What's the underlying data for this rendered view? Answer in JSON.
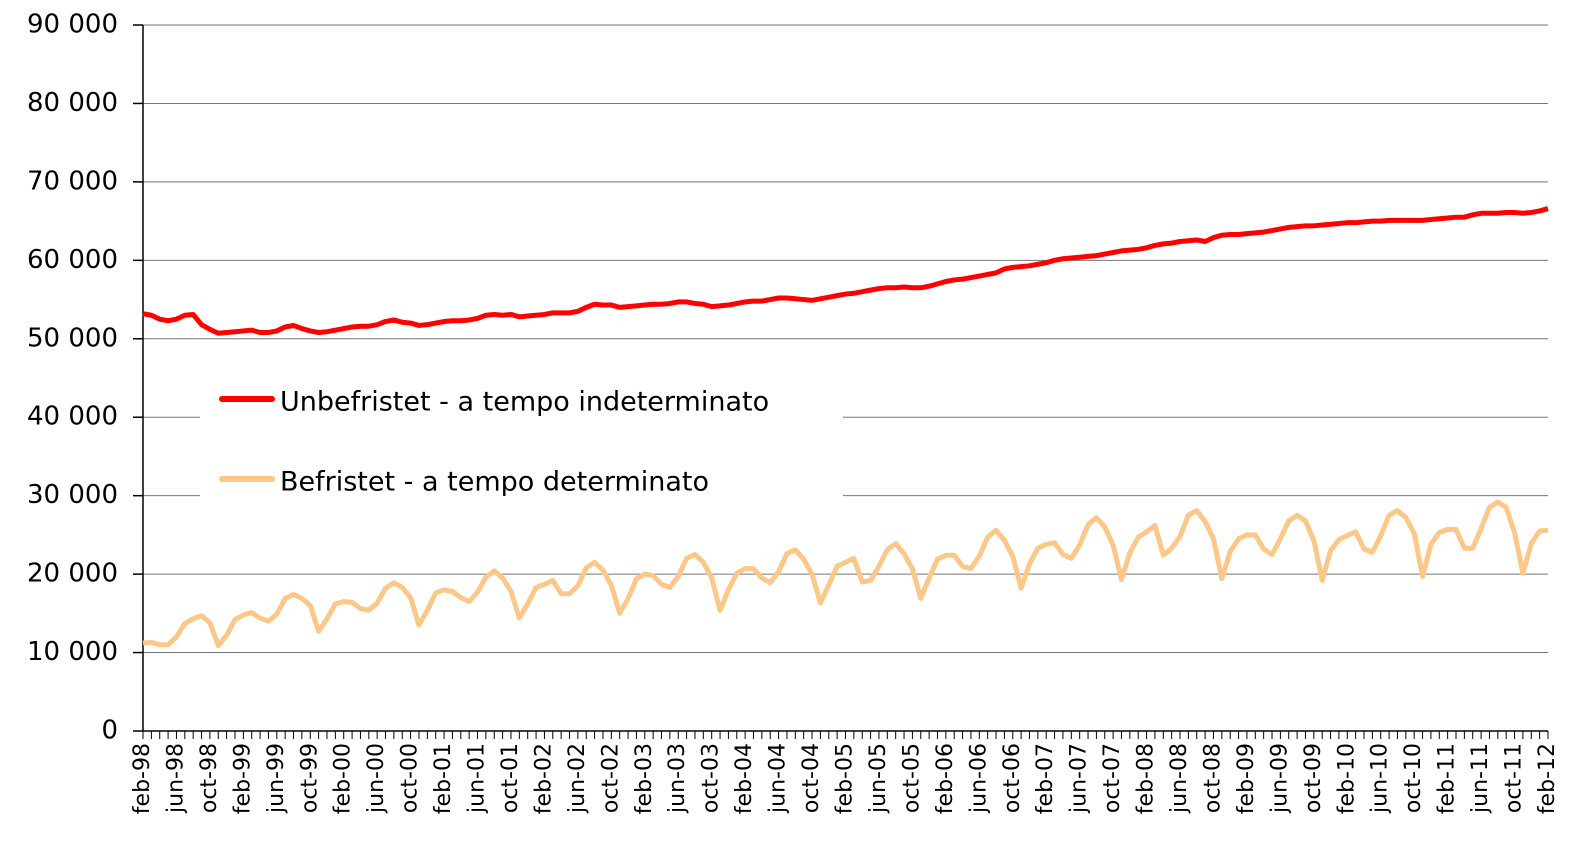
{
  "chart_data": {
    "type": "line",
    "categories": [
      "feb-98",
      null,
      null,
      null,
      "jun-98",
      null,
      null,
      null,
      "oct-98",
      null,
      null,
      null,
      "feb-99",
      null,
      null,
      null,
      "jun-99",
      null,
      null,
      null,
      "oct-99",
      null,
      null,
      null,
      "feb-00",
      null,
      null,
      null,
      "jun-00",
      null,
      null,
      null,
      "oct-00",
      null,
      null,
      null,
      "feb-01",
      null,
      null,
      null,
      "jun-01",
      null,
      null,
      null,
      "oct-01",
      null,
      null,
      null,
      "feb-02",
      null,
      null,
      null,
      "jun-02",
      null,
      null,
      null,
      "oct-02",
      null,
      null,
      null,
      "feb-03",
      null,
      null,
      null,
      "jun-03",
      null,
      null,
      null,
      "oct-03",
      null,
      null,
      null,
      "feb-04",
      null,
      null,
      null,
      "jun-04",
      null,
      null,
      null,
      "oct-04",
      null,
      null,
      null,
      "feb-05",
      null,
      null,
      null,
      "jun-05",
      null,
      null,
      null,
      "oct-05",
      null,
      null,
      null,
      "feb-06",
      null,
      null,
      null,
      "jun-06",
      null,
      null,
      null,
      "oct-06",
      null,
      null,
      null,
      "feb-07",
      null,
      null,
      null,
      "jun-07",
      null,
      null,
      null,
      "oct-07",
      null,
      null,
      null,
      "feb-08",
      null,
      null,
      null,
      "jun-08",
      null,
      null,
      null,
      "oct-08",
      null,
      null,
      null,
      "feb-09",
      null,
      null,
      null,
      "jun-09",
      null,
      null,
      null,
      "oct-09",
      null,
      null,
      null,
      "feb-10",
      null,
      null,
      null,
      "jun-10",
      null,
      null,
      null,
      "oct-10",
      null,
      null,
      null,
      "feb-11",
      null,
      null,
      null,
      "jun-11",
      null,
      null,
      null,
      "oct-11",
      null,
      null,
      null,
      "feb-12"
    ],
    "series": [
      {
        "name": "Unbefristet - a tempo indeterminato",
        "color": "#ff0000",
        "values": [
          53200,
          53000,
          52500,
          52300,
          52500,
          53000,
          53100,
          51800,
          51200,
          50700,
          50800,
          50900,
          51000,
          51100,
          50800,
          50800,
          51000,
          51500,
          51700,
          51300,
          51000,
          50800,
          50900,
          51100,
          51300,
          51500,
          51600,
          51600,
          51800,
          52200,
          52400,
          52100,
          52000,
          51700,
          51800,
          52000,
          52200,
          52300,
          52300,
          52400,
          52600,
          53000,
          53100,
          53000,
          53100,
          52800,
          52900,
          53000,
          53100,
          53300,
          53300,
          53300,
          53500,
          54000,
          54400,
          54300,
          54300,
          54000,
          54100,
          54200,
          54300,
          54400,
          54400,
          54500,
          54700,
          54700,
          54500,
          54400,
          54100,
          54200,
          54300,
          54500,
          54700,
          54800,
          54800,
          55000,
          55200,
          55200,
          55100,
          55000,
          54900,
          55100,
          55300,
          55500,
          55700,
          55800,
          56000,
          56200,
          56400,
          56500,
          56500,
          56600,
          56500,
          56500,
          56700,
          57000,
          57300,
          57500,
          57600,
          57800,
          58000,
          58200,
          58400,
          58900,
          59100,
          59200,
          59300,
          59500,
          59700,
          60000,
          60200,
          60300,
          60400,
          60500,
          60600,
          60800,
          61000,
          61200,
          61300,
          61400,
          61600,
          61900,
          62100,
          62200,
          62400,
          62500,
          62600,
          62400,
          62900,
          63200,
          63300,
          63300,
          63400,
          63500,
          63600,
          63800,
          64000,
          64200,
          64300,
          64400,
          64400,
          64500,
          64600,
          64700,
          64800,
          64800,
          64900,
          65000,
          65000,
          65100,
          65100,
          65100,
          65100,
          65100,
          65200,
          65300,
          65400,
          65500,
          65500,
          65800,
          66000,
          66000,
          66000,
          66100,
          66100,
          66000,
          66100,
          66300,
          66600
        ]
      },
      {
        "name": "Befristet - a tempo determinato",
        "color": "#fbc88a",
        "values": [
          11200,
          11300,
          11000,
          11000,
          12000,
          13700,
          14300,
          14700,
          13800,
          10900,
          12200,
          14200,
          14800,
          15100,
          14400,
          14000,
          14900,
          16900,
          17400,
          16900,
          16000,
          12700,
          14300,
          16200,
          16500,
          16400,
          15600,
          15400,
          16300,
          18200,
          18900,
          18300,
          17000,
          13500,
          15400,
          17600,
          18000,
          17800,
          17000,
          16500,
          17700,
          19600,
          20400,
          19500,
          17800,
          14400,
          16200,
          18300,
          18700,
          19200,
          17500,
          17500,
          18500,
          20800,
          21500,
          20500,
          18600,
          15000,
          16900,
          19400,
          20000,
          19800,
          18700,
          18300,
          19700,
          22000,
          22500,
          21500,
          19500,
          15400,
          18000,
          20100,
          20700,
          20700,
          19500,
          18900,
          20300,
          22600,
          23100,
          21900,
          20000,
          16300,
          18600,
          21000,
          21500,
          22000,
          19000,
          19200,
          21000,
          23100,
          23900,
          22600,
          20700,
          16900,
          19500,
          21900,
          22400,
          22400,
          21000,
          20700,
          22300,
          24700,
          25600,
          24300,
          22300,
          18200,
          21300,
          23300,
          23800,
          24000,
          22500,
          22000,
          23700,
          26300,
          27200,
          26000,
          23700,
          19300,
          22700,
          24700,
          25400,
          26200,
          22400,
          23300,
          24800,
          27500,
          28100,
          26700,
          24500,
          19400,
          22900,
          24500,
          25000,
          25000,
          23200,
          22500,
          24500,
          26800,
          27500,
          26800,
          24300,
          19200,
          23000,
          24400,
          24900,
          25400,
          23200,
          22800,
          24900,
          27500,
          28100,
          27200,
          25200,
          19700,
          23800,
          25300,
          25700,
          25700,
          23300,
          23300,
          25800,
          28500,
          29200,
          28500,
          25300,
          20100,
          23900,
          25500,
          25600
        ]
      }
    ],
    "ylim": [
      0,
      90000
    ],
    "yticks": [
      0,
      {
        "value": 10000,
        "label": "10 000"
      },
      {
        "value": 20000,
        "label": "20 000"
      },
      {
        "value": 30000,
        "label": "30 000"
      },
      {
        "value": 40000,
        "label": "40 000"
      },
      {
        "value": 50000,
        "label": "50 000"
      },
      {
        "value": 60000,
        "label": "60 000"
      },
      {
        "value": 70000,
        "label": "70 000"
      },
      {
        "value": 80000,
        "label": "80 000"
      },
      {
        "value": 90000,
        "label": "90 000"
      }
    ],
    "grid": true
  }
}
